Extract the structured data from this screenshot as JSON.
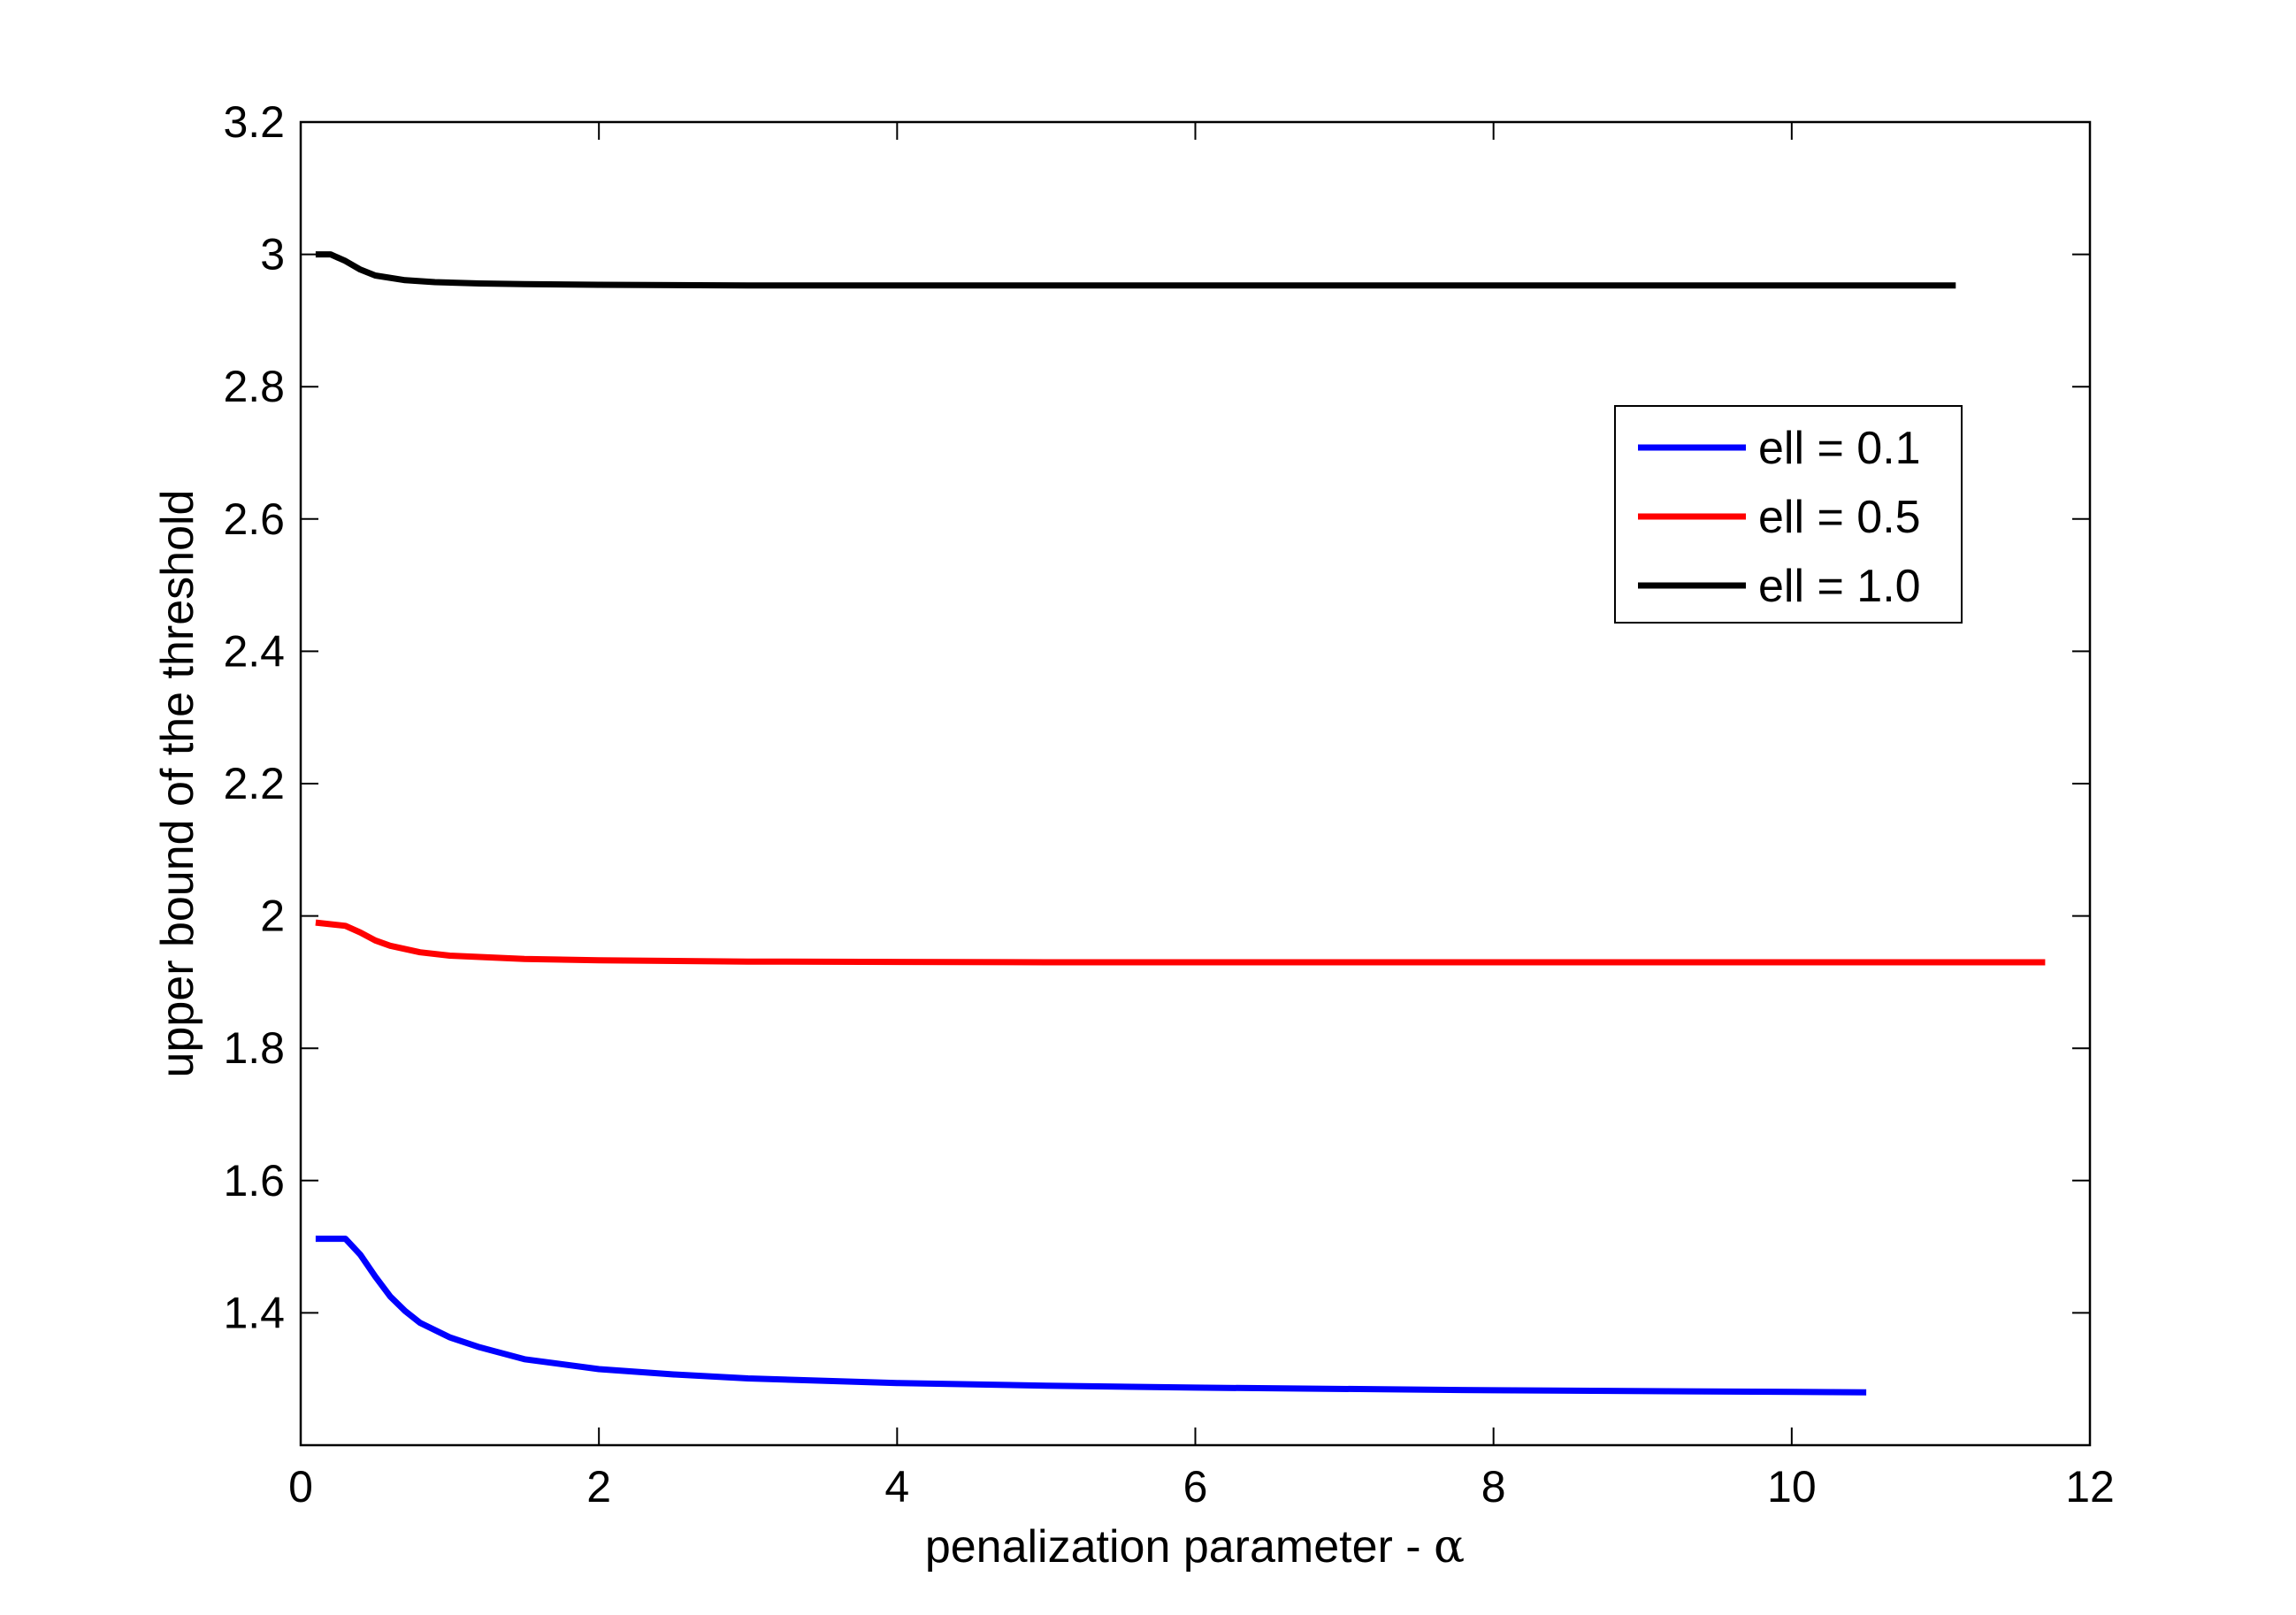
{
  "chart_data": {
    "type": "line",
    "title": "",
    "xlabel": "penalization parameter - ",
    "xlabel_symbol": "α",
    "ylabel": "upper bound of the threshold",
    "xlim": [
      0,
      12
    ],
    "ylim": [
      1.2,
      3.2
    ],
    "x_ticks": [
      0,
      2,
      4,
      6,
      8,
      10,
      12
    ],
    "x_tick_labels": [
      "0",
      "2",
      "4",
      "6",
      "8",
      "10",
      "12"
    ],
    "y_ticks": [
      1.4,
      1.6,
      1.8,
      2.0,
      2.2,
      2.4,
      2.6,
      2.8,
      3.0,
      3.2
    ],
    "y_tick_labels": [
      "1.4",
      "1.6",
      "1.8",
      "2",
      "2.2",
      "2.4",
      "2.6",
      "2.8",
      "3",
      "3.2"
    ],
    "grid": false,
    "legend_position": "upper-right",
    "series": [
      {
        "name": "ell = 0.1",
        "color": "#0000ff",
        "x": [
          0.1,
          0.3,
          0.4,
          0.5,
          0.6,
          0.7,
          0.8,
          1.0,
          1.2,
          1.5,
          2.0,
          2.5,
          3.0,
          4.0,
          5.0,
          6.0,
          8.0,
          10.5
        ],
        "y": [
          1.512,
          1.512,
          1.488,
          1.455,
          1.425,
          1.403,
          1.385,
          1.363,
          1.348,
          1.33,
          1.315,
          1.307,
          1.301,
          1.294,
          1.29,
          1.287,
          1.283,
          1.28
        ]
      },
      {
        "name": "ell = 0.5",
        "color": "#ff0000",
        "x": [
          0.1,
          0.3,
          0.4,
          0.5,
          0.6,
          0.8,
          1.0,
          1.5,
          2.0,
          3.0,
          5.0,
          11.7
        ],
        "y": [
          1.99,
          1.985,
          1.975,
          1.963,
          1.955,
          1.945,
          1.94,
          1.935,
          1.933,
          1.931,
          1.93,
          1.93
        ]
      },
      {
        "name": "ell = 1.0",
        "color": "#000000",
        "x": [
          0.1,
          0.2,
          0.3,
          0.4,
          0.5,
          0.7,
          0.9,
          1.2,
          1.5,
          2.0,
          3.0,
          11.1
        ],
        "y": [
          3.0,
          3.0,
          2.99,
          2.977,
          2.968,
          2.961,
          2.958,
          2.956,
          2.955,
          2.954,
          2.953,
          2.953
        ]
      }
    ]
  }
}
